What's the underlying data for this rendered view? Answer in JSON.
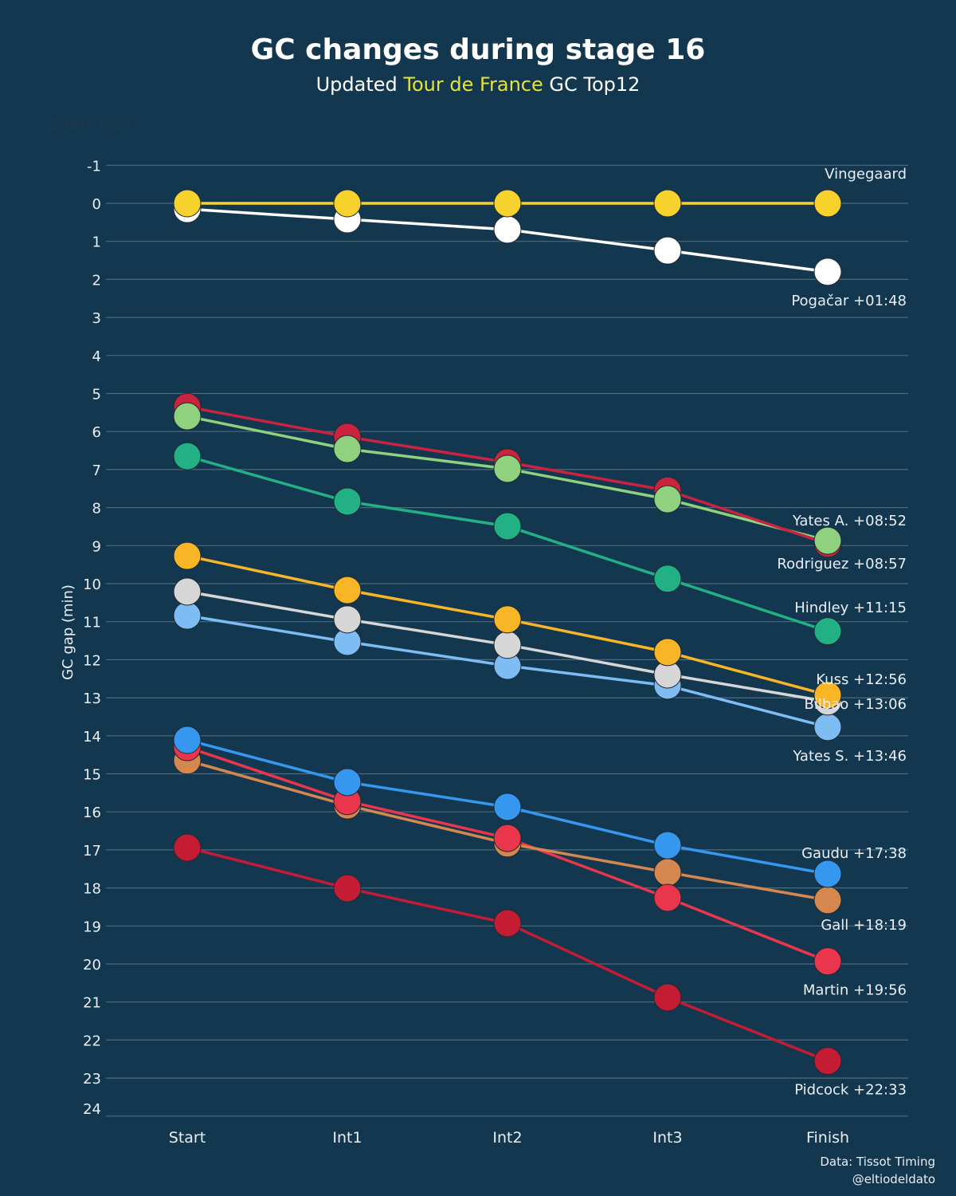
{
  "chart_data": {
    "type": "line",
    "title": "GC changes during stage 16",
    "subtitle": {
      "prefix": "Updated ",
      "highlight": "Tour de France",
      "suffix": " GC Top12",
      "highlight_color": "#e6e33a"
    },
    "sheet_label": "Sheet 1 (2)",
    "xlabel": "",
    "ylabel": "GC gap (min)",
    "categories": [
      "Start",
      "Int1",
      "Int2",
      "Int3",
      "Finish"
    ],
    "ylim": [
      -1,
      24
    ],
    "y_inverted": true,
    "yticks": [
      -1,
      0,
      1,
      2,
      3,
      4,
      5,
      6,
      7,
      8,
      9,
      10,
      11,
      12,
      13,
      14,
      15,
      16,
      17,
      18,
      19,
      20,
      21,
      22,
      23,
      24
    ],
    "grid": true,
    "legend": "none (direct labels at right end of each line)",
    "series": [
      {
        "name": "Vingegaard",
        "label": "Vingegaard",
        "color": "#f7d22d",
        "values": [
          0,
          0,
          0,
          0,
          0
        ]
      },
      {
        "name": "Pogačar",
        "label": "Pogačar +01:48",
        "color": "#ffffff",
        "values": [
          0.15,
          0.42,
          0.69,
          1.24,
          1.8
        ]
      },
      {
        "name": "Yates A.",
        "label": "Yates A. +08:52",
        "color": "#8fd17e",
        "values": [
          5.6,
          6.46,
          6.98,
          7.78,
          8.87
        ]
      },
      {
        "name": "Rodriguez",
        "label": "Rodriguez +08:57",
        "color": "#c8233f",
        "values": [
          5.35,
          6.14,
          6.81,
          7.55,
          8.95
        ]
      },
      {
        "name": "Hindley",
        "label": "Hindley +11:15",
        "color": "#21b184",
        "values": [
          6.65,
          7.84,
          8.49,
          9.87,
          11.25
        ]
      },
      {
        "name": "Kuss",
        "label": "Kuss +12:56",
        "color": "#f8b526",
        "values": [
          9.27,
          10.17,
          10.94,
          11.8,
          12.93
        ]
      },
      {
        "name": "Bilbao",
        "label": "Bilbao +13:06",
        "color": "#d6d6d6",
        "values": [
          10.21,
          10.94,
          11.61,
          12.39,
          13.1
        ]
      },
      {
        "name": "Yates S.",
        "label": "Yates S. +13:46",
        "color": "#7ebcf4",
        "values": [
          10.84,
          11.53,
          12.16,
          12.68,
          13.77
        ]
      },
      {
        "name": "Gaudu",
        "label": "Gaudu +17:38",
        "color": "#3598ee",
        "values": [
          14.11,
          15.22,
          15.87,
          16.88,
          17.63
        ]
      },
      {
        "name": "Martin",
        "label": "Martin +19:56",
        "color": "#ea364d",
        "values": [
          14.3,
          15.72,
          16.69,
          18.26,
          19.93
        ]
      },
      {
        "name": "Gall",
        "label": "Gall +18:19",
        "color": "#d4884f",
        "values": [
          14.65,
          15.83,
          16.83,
          17.59,
          18.32
        ]
      },
      {
        "name": "Pidcock",
        "label": "Pidcock +22:33",
        "color": "#c41c35",
        "values": [
          16.94,
          18.01,
          18.93,
          20.88,
          22.55
        ]
      }
    ],
    "end_label_offsets": {
      "Vingegaard": "above",
      "Pogačar": "below",
      "Yates A.": "above",
      "Rodriguez": "below",
      "Hindley": "above",
      "Kuss": "above",
      "Bilbao": "on",
      "Yates S.": "below",
      "Gaudu": "above",
      "Martin": "below",
      "Gall": "below",
      "Pidcock": "below"
    }
  },
  "credits": {
    "source": "Data: Tissot Timing",
    "author": "@eltiodeldato"
  }
}
